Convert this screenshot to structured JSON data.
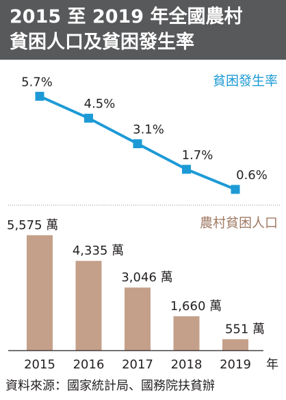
{
  "title": {
    "line1": "2015 至 2019 年全國農村",
    "line2": "貧困人口及貧困發生率"
  },
  "colors": {
    "title_bg": "#58595b",
    "line": "#1d9ad6",
    "bar": "#c4a08a",
    "bar_label_text": "#a07a63",
    "text": "#231f20"
  },
  "chart_data": [
    {
      "type": "line",
      "series": [
        {
          "name": "貧困發生率",
          "values": [
            5.7,
            4.5,
            3.1,
            1.7,
            0.6
          ]
        }
      ],
      "categories": [
        "2015",
        "2016",
        "2017",
        "2018",
        "2019"
      ],
      "data_labels": [
        "5.7%",
        "4.5%",
        "3.1%",
        "1.7%",
        "0.6%"
      ],
      "ylim": [
        0,
        6.2
      ],
      "grid": false
    },
    {
      "type": "bar",
      "series": [
        {
          "name": "農村貧困人口",
          "values": [
            5575,
            4335,
            3046,
            1660,
            551
          ]
        }
      ],
      "categories": [
        "2015",
        "2016",
        "2017",
        "2018",
        "2019"
      ],
      "data_labels": [
        "5,575 萬",
        "4,335 萬",
        "3,046 萬",
        "1,660 萬",
        "551 萬"
      ],
      "ylim": [
        0,
        5900
      ],
      "xlabel": "年",
      "grid": false
    }
  ],
  "source": "資料來源：國家統計局、國務院扶貧辦"
}
